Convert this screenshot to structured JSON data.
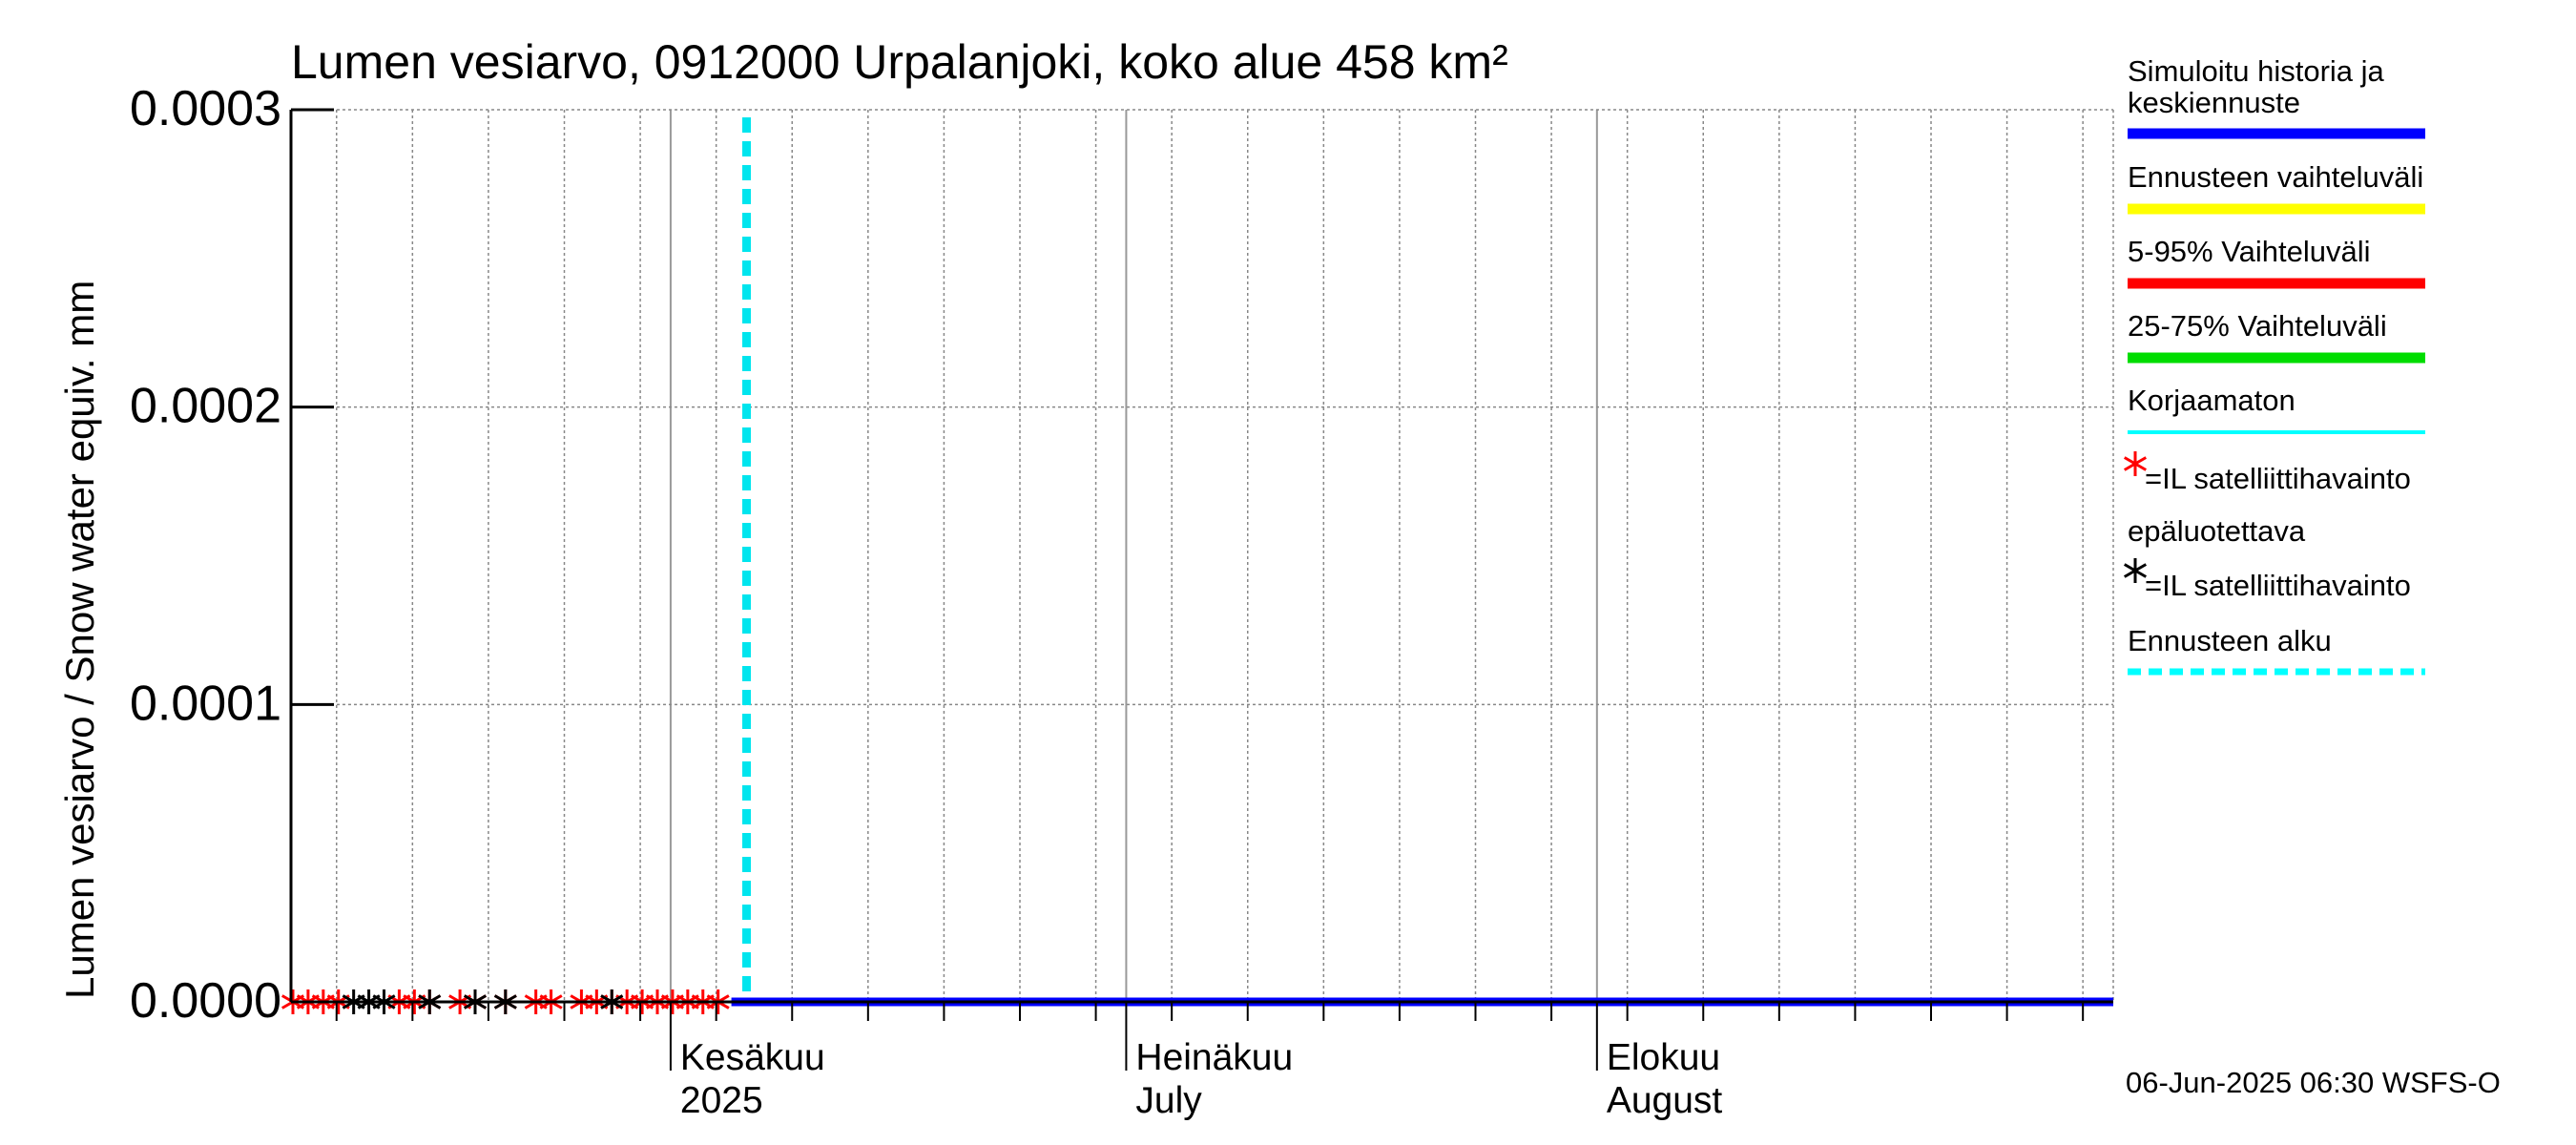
{
  "chart_data": {
    "type": "line",
    "title": "Lumen vesiarvo, 0912000 Urpalanjoki, koko alue 458 km²",
    "ylabel": "Lumen vesiarvo / Snow water equiv.    mm",
    "ylim": [
      0,
      0.0003
    ],
    "yticks": [
      {
        "value": 0,
        "label": "0.0000"
      },
      {
        "value": 0.0001,
        "label": "0.0001"
      },
      {
        "value": 0.0002,
        "label": "0.0002"
      },
      {
        "value": 0.0003,
        "label": "0.0003"
      }
    ],
    "x_domain_days": [
      0,
      120
    ],
    "month_labels": [
      {
        "day": 25,
        "line1": "Kesäkuu",
        "line2": "2025"
      },
      {
        "day": 55,
        "line1": "Heinäkuu",
        "line2": "July"
      },
      {
        "day": 86,
        "line1": "Elokuu",
        "line2": "August"
      }
    ],
    "week_gridlines_days": [
      3,
      8,
      13,
      18,
      23,
      28,
      33,
      38,
      43,
      48,
      53,
      58,
      63,
      68,
      73,
      78,
      83,
      88,
      93,
      98,
      103,
      108,
      113,
      118
    ],
    "forecast_start_day": 30,
    "series": [
      {
        "name": "Simuloitu historia ja keskiennuste",
        "color": "#0000ff",
        "x": [
          0,
          120
        ],
        "y": [
          0,
          0
        ]
      }
    ],
    "observations_reliable_days": [
      0,
      1,
      2,
      3,
      7,
      8,
      9,
      11,
      12,
      14,
      16,
      17,
      19,
      20,
      21,
      22,
      23,
      24,
      25,
      26,
      27,
      28
    ],
    "observations_unreliable_days": [
      4,
      5,
      6,
      9,
      12,
      14,
      21
    ],
    "legend": [
      {
        "label": "Simuloitu historia ja keskiennuste",
        "color": "#0000ff",
        "style": "line"
      },
      {
        "label": "Ennusteen vaihteluväli",
        "color": "#ffff00",
        "style": "line"
      },
      {
        "label": "5-95% Vaihteluväli",
        "color": "#ff0000",
        "style": "line"
      },
      {
        "label": "25-75% Vaihteluväli",
        "color": "#00dd00",
        "style": "line"
      },
      {
        "label": "Korjaamaton",
        "color": "#00ffff",
        "style": "thin"
      },
      {
        "label": "=IL satelliittihavainto",
        "color": "#ff0000",
        "style": "star"
      },
      {
        "label": "epäluotettava",
        "color": "#000000",
        "style": "text"
      },
      {
        "label": "=IL satelliittihavainto",
        "color": "#000000",
        "style": "star"
      },
      {
        "label": "Ennusteen alku",
        "color": "#00ffff",
        "style": "dashed"
      }
    ],
    "footer": "06-Jun-2025 06:30 WSFS-O"
  }
}
